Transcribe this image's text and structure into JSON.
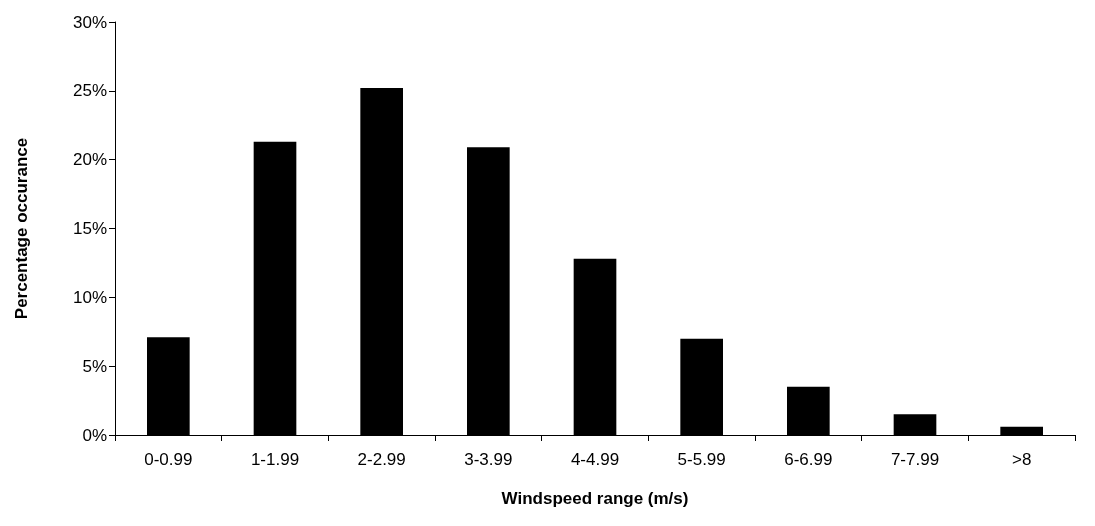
{
  "chart_data": {
    "type": "bar",
    "xlabel": "Windspeed range (m/s)",
    "ylabel": "Percentage occurance",
    "categories": [
      "0-0.99",
      "1-1.99",
      "2-2.99",
      "3-3.99",
      "4-4.99",
      "5-5.99",
      "6-6.99",
      "7-7.99",
      ">8"
    ],
    "values": [
      7.1,
      21.3,
      25.2,
      20.9,
      12.8,
      7.0,
      3.5,
      1.5,
      0.6
    ],
    "color": "#000000",
    "ylim": [
      0,
      30
    ],
    "yticks": [
      {
        "value": 0,
        "label": "0%"
      },
      {
        "value": 5,
        "label": "5%"
      },
      {
        "value": 10,
        "label": "10%"
      },
      {
        "value": 15,
        "label": "15%"
      },
      {
        "value": 20,
        "label": "20%"
      },
      {
        "value": 25,
        "label": "25%"
      },
      {
        "value": 30,
        "label": "30%"
      }
    ],
    "grid": false
  }
}
